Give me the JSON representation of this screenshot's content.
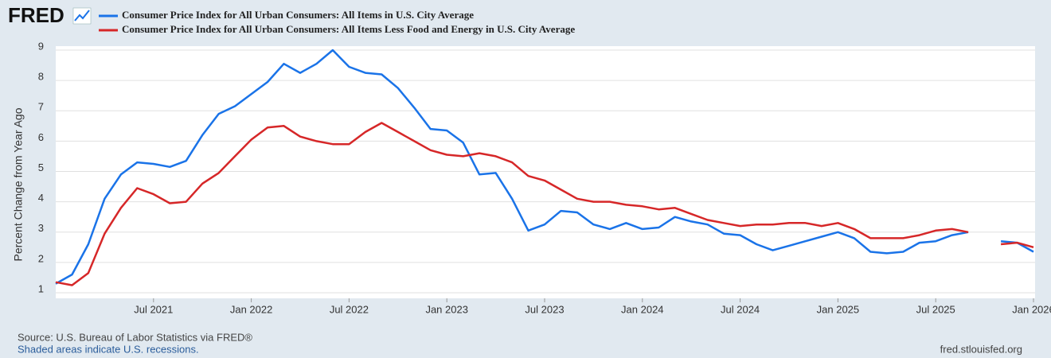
{
  "chart_data": {
    "type": "line",
    "logo": "FRED",
    "y_label": "Percent Change from Year Ago",
    "source": "Source: U.S. Bureau of Labor Statistics via FRED®",
    "note": "Shaded areas indicate U.S. recessions.",
    "url": "fred.stlouisfed.org",
    "x": [
      "2021-01",
      "2021-02",
      "2021-03",
      "2021-04",
      "2021-05",
      "2021-06",
      "2021-07",
      "2021-08",
      "2021-09",
      "2021-10",
      "2021-11",
      "2021-12",
      "2022-01",
      "2022-02",
      "2022-03",
      "2022-04",
      "2022-05",
      "2022-06",
      "2022-07",
      "2022-08",
      "2022-09",
      "2022-10",
      "2022-11",
      "2022-12",
      "2023-01",
      "2023-02",
      "2023-03",
      "2023-04",
      "2023-05",
      "2023-06",
      "2023-07",
      "2023-08",
      "2023-09",
      "2023-10",
      "2023-11",
      "2023-12",
      "2024-01",
      "2024-02",
      "2024-03",
      "2024-04",
      "2024-05",
      "2024-06",
      "2024-07",
      "2024-08",
      "2024-09",
      "2024-10",
      "2024-11",
      "2024-12",
      "2025-01",
      "2025-02",
      "2025-03",
      "2025-04",
      "2025-05",
      "2025-06",
      "2025-07",
      "2025-08",
      "2025-09",
      "2025-10",
      "2025-11",
      "2025-12",
      "2026-01"
    ],
    "series": [
      {
        "name": "Consumer Price Index for All Urban Consumers: All Items in U.S. City Average",
        "color": "#1a73e8",
        "values": [
          1.3,
          1.6,
          2.6,
          4.1,
          4.9,
          5.3,
          5.25,
          5.15,
          5.35,
          6.2,
          6.9,
          7.15,
          7.55,
          7.95,
          8.55,
          8.25,
          8.55,
          9.0,
          8.45,
          8.25,
          8.2,
          7.75,
          7.1,
          6.4,
          6.35,
          5.95,
          4.9,
          4.95,
          4.1,
          3.05,
          3.25,
          3.7,
          3.65,
          3.25,
          3.1,
          3.3,
          3.1,
          3.15,
          3.5,
          3.35,
          3.25,
          2.95,
          2.9,
          2.6,
          2.4,
          2.55,
          2.7,
          2.85,
          3.0,
          2.8,
          2.35,
          2.3,
          2.35,
          2.65,
          2.7,
          2.9,
          3.0,
          null,
          2.7,
          2.65,
          2.35
        ]
      },
      {
        "name": "Consumer Price Index for All Urban Consumers: All Items Less Food and Energy in U.S. City Average",
        "color": "#d62728",
        "values": [
          1.35,
          1.25,
          1.65,
          2.95,
          3.8,
          4.45,
          4.25,
          3.95,
          4.0,
          4.6,
          4.95,
          5.5,
          6.05,
          6.45,
          6.5,
          6.15,
          6.0,
          5.9,
          5.9,
          6.3,
          6.6,
          6.3,
          6.0,
          5.7,
          5.55,
          5.5,
          5.6,
          5.5,
          5.3,
          4.85,
          4.7,
          4.4,
          4.1,
          4.0,
          4.0,
          3.9,
          3.85,
          3.75,
          3.8,
          3.6,
          3.4,
          3.3,
          3.2,
          3.25,
          3.25,
          3.3,
          3.3,
          3.2,
          3.3,
          3.1,
          2.8,
          2.8,
          2.8,
          2.9,
          3.05,
          3.1,
          3.0,
          null,
          2.6,
          2.65,
          2.5
        ]
      }
    ],
    "xlim": [
      "2021-01",
      "2026-01"
    ],
    "xticks": [
      {
        "value": "2021-07",
        "label": "Jul 2021"
      },
      {
        "value": "2022-01",
        "label": "Jan 2022"
      },
      {
        "value": "2022-07",
        "label": "Jul 2022"
      },
      {
        "value": "2023-01",
        "label": "Jan 2023"
      },
      {
        "value": "2023-07",
        "label": "Jul 2023"
      },
      {
        "value": "2024-01",
        "label": "Jan 2024"
      },
      {
        "value": "2024-07",
        "label": "Jul 2024"
      },
      {
        "value": "2025-01",
        "label": "Jan 2025"
      },
      {
        "value": "2025-07",
        "label": "Jul 2025"
      },
      {
        "value": "2026-01",
        "label": "Jan 2026"
      }
    ],
    "ylim": [
      1,
      9
    ],
    "yticks": [
      1,
      2,
      3,
      4,
      5,
      6,
      7,
      8,
      9
    ],
    "grid": true
  }
}
